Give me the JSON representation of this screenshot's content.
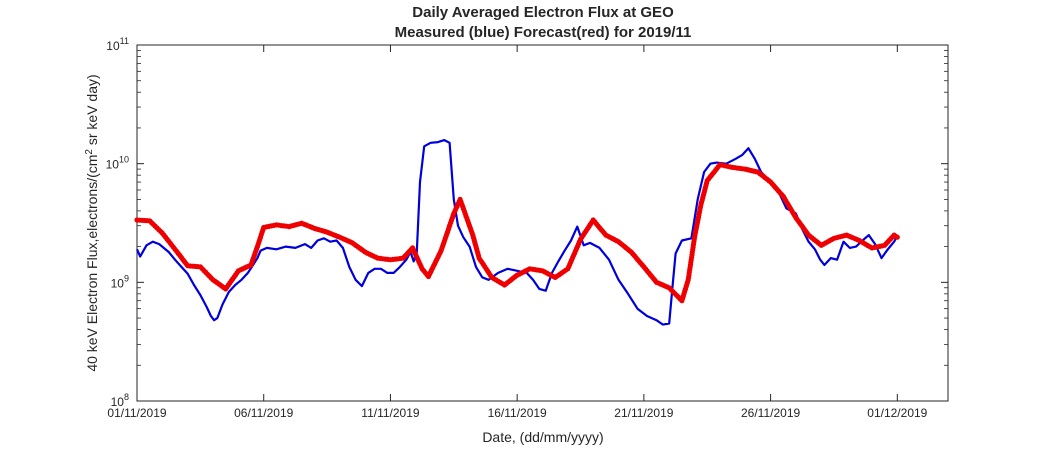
{
  "chart_data": {
    "type": "line",
    "title": "Daily Averaged Electron Flux at GEO",
    "subtitle": "Measured (blue) Forecast(red) for 2019/11",
    "xlabel": "Date, (dd/mm/yyyy)",
    "ylabel": {
      "prefix": "40 keV Electron Flux,electrons/(cm",
      "superscript": "2",
      "suffix": " sr keV day)"
    },
    "y_scale": "log",
    "ylim": [
      100000000.0,
      100000000000.0
    ],
    "y_ticks": [
      {
        "value": 100000000.0,
        "base": "10",
        "exp": "8"
      },
      {
        "value": 1000000000.0,
        "base": "10",
        "exp": "9"
      },
      {
        "value": 10000000000.0,
        "base": "10",
        "exp": "10"
      },
      {
        "value": 100000000000.0,
        "base": "10",
        "exp": "11"
      }
    ],
    "xlim": [
      "2019-11-01",
      "2019-12-03"
    ],
    "x_ticks": [
      {
        "date": "2019-11-01",
        "label": "01/11/2019"
      },
      {
        "date": "2019-11-06",
        "label": "06/11/2019"
      },
      {
        "date": "2019-11-11",
        "label": "11/11/2019"
      },
      {
        "date": "2019-11-16",
        "label": "16/11/2019"
      },
      {
        "date": "2019-11-21",
        "label": "21/11/2019"
      },
      {
        "date": "2019-11-26",
        "label": "26/11/2019"
      },
      {
        "date": "2019-12-01",
        "label": "01/12/2019"
      }
    ],
    "grid": false,
    "series": [
      {
        "style": "line",
        "color": "#0000dd",
        "points": [
          [
            "2019-11-01T00:00",
            1900000000.0
          ],
          [
            "2019-11-01T03:00",
            1650000000.0
          ],
          [
            "2019-11-01T09:00",
            2050000000.0
          ],
          [
            "2019-11-01T15:00",
            2200000000.0
          ],
          [
            "2019-11-01T21:00",
            2100000000.0
          ],
          [
            "2019-11-02T06:00",
            1800000000.0
          ],
          [
            "2019-11-02T12:00",
            1550000000.0
          ],
          [
            "2019-11-02T18:00",
            1350000000.0
          ],
          [
            "2019-11-03T00:00",
            1180000000.0
          ],
          [
            "2019-11-03T06:00",
            950000000.0
          ],
          [
            "2019-11-03T12:00",
            780000000.0
          ],
          [
            "2019-11-03T18:00",
            620000000.0
          ],
          [
            "2019-11-03T22:00",
            520000000.0
          ],
          [
            "2019-11-04T01:00",
            480000000.0
          ],
          [
            "2019-11-04T04:00",
            500000000.0
          ],
          [
            "2019-11-04T09:00",
            650000000.0
          ],
          [
            "2019-11-04T15:00",
            830000000.0
          ],
          [
            "2019-11-04T21:00",
            950000000.0
          ],
          [
            "2019-11-05T03:00",
            1050000000.0
          ],
          [
            "2019-11-05T09:00",
            1200000000.0
          ],
          [
            "2019-11-05T15:00",
            1450000000.0
          ],
          [
            "2019-11-05T18:00",
            1600000000.0
          ],
          [
            "2019-11-05T21:00",
            1850000000.0
          ],
          [
            "2019-11-06T03:00",
            1950000000.0
          ],
          [
            "2019-11-06T12:00",
            1900000000.0
          ],
          [
            "2019-11-06T21:00",
            2000000000.0
          ],
          [
            "2019-11-07T06:00",
            1950000000.0
          ],
          [
            "2019-11-07T15:00",
            2100000000.0
          ],
          [
            "2019-11-07T21:00",
            1950000000.0
          ],
          [
            "2019-11-08T03:00",
            2250000000.0
          ],
          [
            "2019-11-08T09:00",
            2350000000.0
          ],
          [
            "2019-11-08T15:00",
            2200000000.0
          ],
          [
            "2019-11-08T21:00",
            2250000000.0
          ],
          [
            "2019-11-09T03:00",
            1950000000.0
          ],
          [
            "2019-11-09T09:00",
            1350000000.0
          ],
          [
            "2019-11-09T15:00",
            1050000000.0
          ],
          [
            "2019-11-09T21:00",
            930000000.0
          ],
          [
            "2019-11-10T03:00",
            1200000000.0
          ],
          [
            "2019-11-10T09:00",
            1300000000.0
          ],
          [
            "2019-11-10T15:00",
            1300000000.0
          ],
          [
            "2019-11-10T21:00",
            1200000000.0
          ],
          [
            "2019-11-11T03:00",
            1200000000.0
          ],
          [
            "2019-11-11T09:00",
            1350000000.0
          ],
          [
            "2019-11-11T15:00",
            1550000000.0
          ],
          [
            "2019-11-11T19:00",
            1800000000.0
          ],
          [
            "2019-11-11T22:00",
            1500000000.0
          ],
          [
            "2019-11-12T01:00",
            1800000000.0
          ],
          [
            "2019-11-12T04:00",
            7000000000.0
          ],
          [
            "2019-11-12T08:00",
            14000000000.0
          ],
          [
            "2019-11-12T14:00",
            15000000000.0
          ],
          [
            "2019-11-12T21:00",
            15200000000.0
          ],
          [
            "2019-11-13T03:00",
            15800000000.0
          ],
          [
            "2019-11-13T08:00",
            15000000000.0
          ],
          [
            "2019-11-13T12:00",
            5000000000.0
          ],
          [
            "2019-11-13T16:00",
            3000000000.0
          ],
          [
            "2019-11-13T21:00",
            2400000000.0
          ],
          [
            "2019-11-14T03:00",
            2000000000.0
          ],
          [
            "2019-11-14T09:00",
            1350000000.0
          ],
          [
            "2019-11-14T15:00",
            1100000000.0
          ],
          [
            "2019-11-14T21:00",
            1050000000.0
          ],
          [
            "2019-11-15T06:00",
            1200000000.0
          ],
          [
            "2019-11-15T15:00",
            1300000000.0
          ],
          [
            "2019-11-16T00:00",
            1250000000.0
          ],
          [
            "2019-11-16T09:00",
            1200000000.0
          ],
          [
            "2019-11-16T15:00",
            1050000000.0
          ],
          [
            "2019-11-16T21:00",
            880000000.0
          ],
          [
            "2019-11-17T03:00",
            850000000.0
          ],
          [
            "2019-11-17T09:00",
            1200000000.0
          ],
          [
            "2019-11-17T15:00",
            1500000000.0
          ],
          [
            "2019-11-17T21:00",
            1850000000.0
          ],
          [
            "2019-11-18T03:00",
            2250000000.0
          ],
          [
            "2019-11-18T09:00",
            2950000000.0
          ],
          [
            "2019-11-18T15:00",
            2050000000.0
          ],
          [
            "2019-11-18T21:00",
            2150000000.0
          ],
          [
            "2019-11-19T06:00",
            1950000000.0
          ],
          [
            "2019-11-19T15:00",
            1550000000.0
          ],
          [
            "2019-11-20T00:00",
            1050000000.0
          ],
          [
            "2019-11-20T09:00",
            800000000.0
          ],
          [
            "2019-11-20T18:00",
            600000000.0
          ],
          [
            "2019-11-21T03:00",
            520000000.0
          ],
          [
            "2019-11-21T12:00",
            480000000.0
          ],
          [
            "2019-11-21T18:00",
            440000000.0
          ],
          [
            "2019-11-22T00:00",
            450000000.0
          ],
          [
            "2019-11-22T03:00",
            900000000.0
          ],
          [
            "2019-11-22T06:00",
            1750000000.0
          ],
          [
            "2019-11-22T12:00",
            2250000000.0
          ],
          [
            "2019-11-22T21:00",
            2350000000.0
          ],
          [
            "2019-11-23T03:00",
            5000000000.0
          ],
          [
            "2019-11-23T09:00",
            8500000000.0
          ],
          [
            "2019-11-23T15:00",
            10000000000.0
          ],
          [
            "2019-11-23T21:00",
            10200000000.0
          ],
          [
            "2019-11-24T06:00",
            10000000000.0
          ],
          [
            "2019-11-24T15:00",
            11000000000.0
          ],
          [
            "2019-11-24T21:00",
            11800000000.0
          ],
          [
            "2019-11-25T03:00",
            13500000000.0
          ],
          [
            "2019-11-25T09:00",
            11000000000.0
          ],
          [
            "2019-11-25T15:00",
            8500000000.0
          ],
          [
            "2019-11-25T21:00",
            7500000000.0
          ],
          [
            "2019-11-26T06:00",
            6200000000.0
          ],
          [
            "2019-11-26T15:00",
            4200000000.0
          ],
          [
            "2019-11-27T00:00",
            3800000000.0
          ],
          [
            "2019-11-27T06:00",
            2800000000.0
          ],
          [
            "2019-11-27T12:00",
            2200000000.0
          ],
          [
            "2019-11-27T18:00",
            1900000000.0
          ],
          [
            "2019-11-27T23:00",
            1550000000.0
          ],
          [
            "2019-11-28T03:00",
            1400000000.0
          ],
          [
            "2019-11-28T09:00",
            1600000000.0
          ],
          [
            "2019-11-28T15:00",
            1550000000.0
          ],
          [
            "2019-11-28T21:00",
            2200000000.0
          ],
          [
            "2019-11-29T03:00",
            1950000000.0
          ],
          [
            "2019-11-29T09:00",
            2000000000.0
          ],
          [
            "2019-11-29T15:00",
            2250000000.0
          ],
          [
            "2019-11-29T21:00",
            2500000000.0
          ],
          [
            "2019-11-30T03:00",
            2100000000.0
          ],
          [
            "2019-11-30T09:00",
            1600000000.0
          ],
          [
            "2019-11-30T15:00",
            1900000000.0
          ],
          [
            "2019-11-30T21:00",
            2200000000.0
          ],
          [
            "2019-12-01T00:00",
            2450000000.0
          ]
        ]
      },
      {
        "style": "dots",
        "color": "#ee0000",
        "points": [
          [
            "2019-11-01T00:00",
            3350000000.0
          ],
          [
            "2019-11-01T12:00",
            3300000000.0
          ],
          [
            "2019-11-02T00:00",
            2600000000.0
          ],
          [
            "2019-11-02T12:00",
            1900000000.0
          ],
          [
            "2019-11-03T00:00",
            1380000000.0
          ],
          [
            "2019-11-03T12:00",
            1350000000.0
          ],
          [
            "2019-11-04T00:00",
            1050000000.0
          ],
          [
            "2019-11-04T12:00",
            880000000.0
          ],
          [
            "2019-11-05T00:00",
            1250000000.0
          ],
          [
            "2019-11-05T12:00",
            1400000000.0
          ],
          [
            "2019-11-05T18:00",
            2000000000.0
          ],
          [
            "2019-11-06T00:00",
            2900000000.0
          ],
          [
            "2019-11-06T12:00",
            3050000000.0
          ],
          [
            "2019-11-07T00:00",
            2950000000.0
          ],
          [
            "2019-11-07T12:00",
            3150000000.0
          ],
          [
            "2019-11-08T00:00",
            2850000000.0
          ],
          [
            "2019-11-08T12:00",
            2650000000.0
          ],
          [
            "2019-11-09T00:00",
            2400000000.0
          ],
          [
            "2019-11-09T12:00",
            2150000000.0
          ],
          [
            "2019-11-10T00:00",
            1800000000.0
          ],
          [
            "2019-11-10T12:00",
            1600000000.0
          ],
          [
            "2019-11-11T00:00",
            1550000000.0
          ],
          [
            "2019-11-11T12:00",
            1600000000.0
          ],
          [
            "2019-11-11T21:00",
            1950000000.0
          ],
          [
            "2019-11-12T06:00",
            1300000000.0
          ],
          [
            "2019-11-12T12:00",
            1120000000.0
          ],
          [
            "2019-11-13T00:00",
            1850000000.0
          ],
          [
            "2019-11-13T12:00",
            3800000000.0
          ],
          [
            "2019-11-13T18:00",
            5000000000.0
          ],
          [
            "2019-11-14T06:00",
            2500000000.0
          ],
          [
            "2019-11-14T12:00",
            1600000000.0
          ],
          [
            "2019-11-15T00:00",
            1100000000.0
          ],
          [
            "2019-11-15T12:00",
            950000000.0
          ],
          [
            "2019-11-16T00:00",
            1150000000.0
          ],
          [
            "2019-11-16T12:00",
            1300000000.0
          ],
          [
            "2019-11-17T00:00",
            1250000000.0
          ],
          [
            "2019-11-17T12:00",
            1100000000.0
          ],
          [
            "2019-11-18T00:00",
            1300000000.0
          ],
          [
            "2019-11-18T12:00",
            2300000000.0
          ],
          [
            "2019-11-19T00:00",
            3350000000.0
          ],
          [
            "2019-11-19T12:00",
            2500000000.0
          ],
          [
            "2019-11-20T00:00",
            2200000000.0
          ],
          [
            "2019-11-20T12:00",
            1800000000.0
          ],
          [
            "2019-11-21T00:00",
            1350000000.0
          ],
          [
            "2019-11-21T12:00",
            1000000000.0
          ],
          [
            "2019-11-22T00:00",
            900000000.0
          ],
          [
            "2019-11-22T12:00",
            700000000.0
          ],
          [
            "2019-11-22T18:00",
            1050000000.0
          ],
          [
            "2019-11-23T00:00",
            2400000000.0
          ],
          [
            "2019-11-23T06:00",
            4500000000.0
          ],
          [
            "2019-11-23T12:00",
            7200000000.0
          ],
          [
            "2019-11-24T00:00",
            9800000000.0
          ],
          [
            "2019-11-24T12:00",
            9300000000.0
          ],
          [
            "2019-11-25T00:00",
            9000000000.0
          ],
          [
            "2019-11-25T12:00",
            8500000000.0
          ],
          [
            "2019-11-26T00:00",
            7000000000.0
          ],
          [
            "2019-11-26T12:00",
            5300000000.0
          ],
          [
            "2019-11-27T00:00",
            3500000000.0
          ],
          [
            "2019-11-27T12:00",
            2500000000.0
          ],
          [
            "2019-11-28T00:00",
            2050000000.0
          ],
          [
            "2019-11-28T12:00",
            2350000000.0
          ],
          [
            "2019-11-29T00:00",
            2500000000.0
          ],
          [
            "2019-11-29T12:00",
            2250000000.0
          ],
          [
            "2019-11-30T00:00",
            1950000000.0
          ],
          [
            "2019-11-30T12:00",
            2050000000.0
          ],
          [
            "2019-11-30T21:00",
            2500000000.0
          ],
          [
            "2019-12-01T00:00",
            2400000000.0
          ]
        ]
      }
    ]
  }
}
